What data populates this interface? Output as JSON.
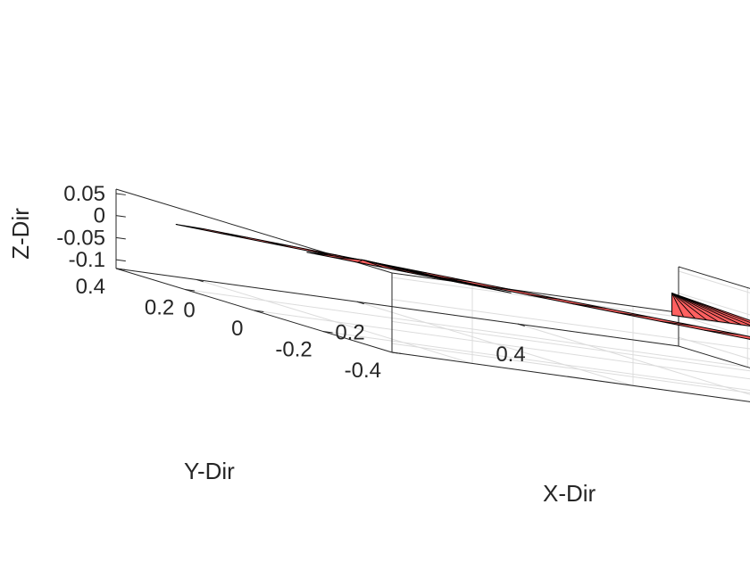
{
  "chart_data": {
    "type": "3d-surface",
    "title": "",
    "xlabel": "X-Dir",
    "ylabel": "Y-Dir",
    "zlabel": "Z-Dir",
    "xlim": [
      -0.1,
      0.6
    ],
    "ylim": [
      -0.4,
      0.4
    ],
    "zlim": [
      -0.12,
      0.06
    ],
    "x_ticks": [
      0,
      0.2,
      0.4
    ],
    "y_ticks": [
      -0.4,
      -0.2,
      0,
      0.2,
      0.4
    ],
    "z_ticks": [
      -0.1,
      -0.05,
      0,
      0.05
    ],
    "x_tick_labels": [
      "0",
      "0.2",
      "0.4"
    ],
    "y_tick_labels": [
      "-0.4",
      "-0.2",
      "0",
      "0.2",
      "0.4"
    ],
    "z_tick_labels": [
      "-0.1",
      "-0.05",
      "0",
      "0.05"
    ],
    "grid": true,
    "surface_color": "#ff6060",
    "edge_color": "#000000",
    "surfaces": [
      {
        "name": "",
        "polygon": [
          [
            0.0,
            0.38,
            0.0
          ],
          [
            0.5,
            -0.27,
            0.0
          ],
          [
            0.45,
            -0.28,
            0.0
          ],
          [
            -0.03,
            0.39,
            0.0
          ]
        ],
        "divisions": 14
      },
      {
        "name": "",
        "polygon": [
          [
            0.06,
            0.22,
            0.0
          ],
          [
            0.22,
            0.0,
            0.0
          ],
          [
            0.13,
            0.22,
            0.0
          ]
        ],
        "divisions": 8
      },
      {
        "name": "",
        "polygon": [
          [
            0.42,
            0.0,
            0.0
          ],
          [
            0.55,
            0.0,
            0.0
          ],
          [
            0.42,
            0.0,
            0.05
          ]
        ],
        "divisions": 9
      }
    ]
  }
}
